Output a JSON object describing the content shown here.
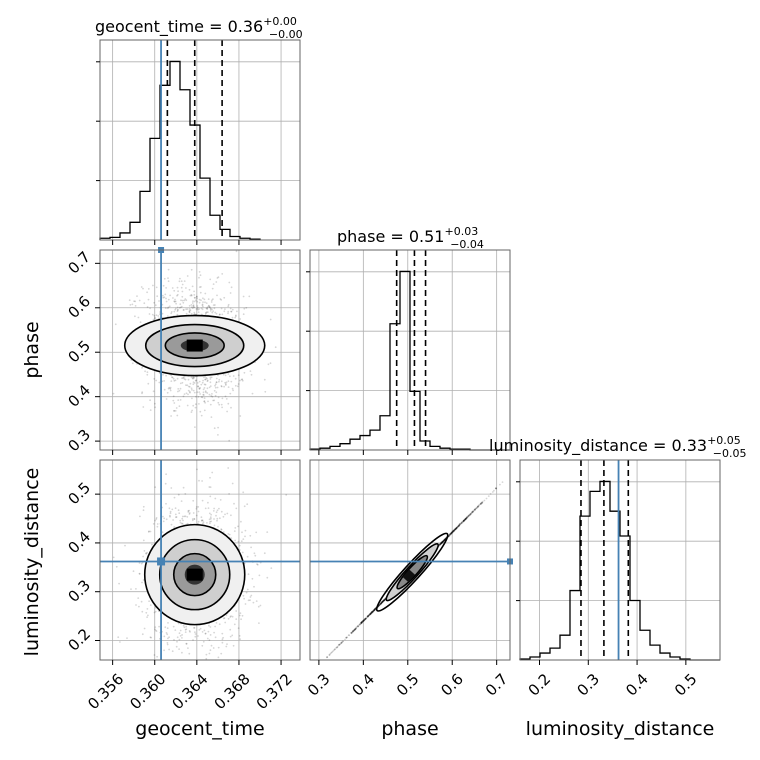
{
  "chart_data": {
    "type": "corner",
    "parameters": [
      {
        "name": "geocent_time",
        "truth": 0.3606,
        "range": [
          0.3548,
          0.3738
        ],
        "ticks": [
          "0.356",
          "0.360",
          "0.364",
          "0.368",
          "0.372"
        ],
        "tick_values": [
          0.356,
          0.36,
          0.364,
          0.368,
          0.372
        ],
        "quantiles": [
          0.3612,
          0.3638,
          0.3664
        ],
        "title": {
          "main": "geocent_time = 0.36",
          "sup": "+0.00",
          "sub": "−0.00"
        },
        "hist_edges_start": 0.3548,
        "hist_bin_width": 0.00095,
        "hist_counts": [
          2,
          3,
          8,
          20,
          55,
          115,
          175,
          202,
          170,
          130,
          70,
          28,
          12,
          4,
          2,
          1
        ]
      },
      {
        "name": "phase",
        "truth": null,
        "range": [
          0.28,
          0.73
        ],
        "ticks": [
          "0.3",
          "0.4",
          "0.5",
          "0.6",
          "0.7"
        ],
        "tick_values": [
          0.3,
          0.4,
          0.5,
          0.6,
          0.7
        ],
        "quantiles": [
          0.475,
          0.515,
          0.54
        ],
        "title": {
          "main": "phase = 0.51",
          "sup": "+0.03",
          "sub": "−0.04"
        },
        "hist_edges_start": 0.28,
        "hist_bin_width": 0.0225,
        "hist_counts": [
          1,
          2,
          4,
          7,
          12,
          16,
          22,
          38,
          140,
          198,
          65,
          10,
          4,
          2,
          1,
          1,
          0,
          0,
          0,
          0
        ]
      },
      {
        "name": "luminosity_distance",
        "truth": 0.362,
        "range": [
          0.16,
          0.57
        ],
        "ticks": [
          "0.2",
          "0.3",
          "0.4",
          "0.5"
        ],
        "tick_values": [
          0.2,
          0.3,
          0.4,
          0.5
        ],
        "quantiles": [
          0.285,
          0.332,
          0.382
        ],
        "title": {
          "main": "luminosity_distance = 0.33",
          "sup": "+0.05",
          "sub": "−0.05"
        },
        "hist_edges_start": 0.16,
        "hist_bin_width": 0.0205,
        "hist_counts": [
          1,
          3,
          7,
          12,
          25,
          70,
          145,
          170,
          180,
          150,
          125,
          60,
          30,
          15,
          7,
          3,
          1,
          0,
          0,
          0
        ]
      }
    ],
    "ylabels": {
      "phase": "phase",
      "luminosity_distance": "luminosity_distance"
    },
    "ylabel_ticks": {
      "phase": [
        "0.3",
        "0.4",
        "0.5",
        "0.6",
        "0.7"
      ],
      "luminosity_distance": [
        "0.2",
        "0.3",
        "0.4",
        "0.5"
      ]
    },
    "grid": true,
    "truth_color": "#4682b4",
    "contour_color": "#000000"
  }
}
